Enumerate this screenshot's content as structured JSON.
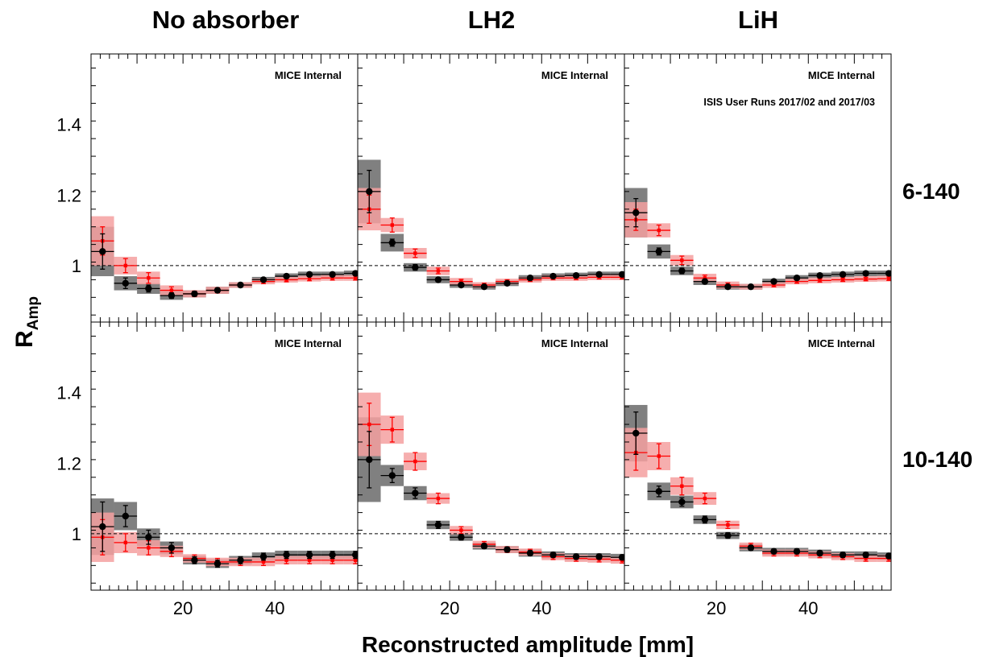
{
  "figure": {
    "column_titles": [
      "No absorber",
      "LH2",
      "LiH"
    ],
    "row_titles": [
      "6-140",
      "10-140"
    ],
    "xlabel": "Reconstructed amplitude [mm]",
    "ylabel_main": "R",
    "ylabel_sub": "Amp",
    "panel_label": "MICE Internal",
    "run_label": "ISIS User Runs 2017/02 and 2017/03"
  },
  "colors": {
    "black_series": "#000000",
    "red_series": "#ff0000",
    "black_band": "#555555",
    "red_band": "#f4a0a0",
    "frame": "#000000"
  },
  "chart_data": {
    "type": "scatter",
    "xlim": [
      0,
      58
    ],
    "ylim": [
      0.84,
      1.6
    ],
    "x_ticks": [
      20,
      40
    ],
    "y_ticks": [
      1,
      1.2,
      1.4
    ],
    "reference_line": 1,
    "grid": false,
    "bin_width": 5,
    "bin_centers": [
      2.5,
      7.5,
      12.5,
      17.5,
      22.5,
      27.5,
      32.5,
      37.5,
      42.5,
      47.5,
      52.5,
      57.5
    ],
    "panels": [
      {
        "column": "No absorber",
        "row": "6-140",
        "series": [
          {
            "values": [
              1.04,
              0.95,
              0.935,
              0.915,
              0.92,
              0.93,
              0.945,
              0.96,
              0.97,
              0.975,
              0.975,
              0.978
            ],
            "errors": [
              0.05,
              0.015,
              0.01,
              0.008,
              0.007,
              0.006,
              0.006,
              0.005,
              0.005,
              0.005,
              0.005,
              0.005
            ],
            "bands": [
              0.07,
              0.02,
              0.015,
              0.012,
              0.01,
              0.01,
              0.008,
              0.008,
              0.008,
              0.008,
              0.008,
              0.008
            ]
          },
          {
            "values": [
              1.07,
              1.0,
              0.965,
              0.93,
              0.92,
              0.93,
              0.945,
              0.955,
              0.96,
              0.963,
              0.965,
              0.965
            ],
            "errors": [
              0.04,
              0.02,
              0.015,
              0.01,
              0.008,
              0.007,
              0.006,
              0.006,
              0.006,
              0.006,
              0.006,
              0.006
            ],
            "bands": [
              0.07,
              0.025,
              0.018,
              0.014,
              0.01,
              0.01,
              0.008,
              0.008,
              0.008,
              0.008,
              0.008,
              0.008
            ]
          }
        ]
      },
      {
        "column": "LH2",
        "row": "6-140",
        "series": [
          {
            "values": [
              1.21,
              1.065,
              0.995,
              0.96,
              0.945,
              0.94,
              0.95,
              0.965,
              0.97,
              0.972,
              0.975,
              0.975
            ],
            "errors": [
              0.06,
              0.01,
              0.008,
              0.006,
              0.005,
              0.005,
              0.005,
              0.005,
              0.005,
              0.005,
              0.005,
              0.005
            ],
            "bands": [
              0.09,
              0.025,
              0.012,
              0.01,
              0.008,
              0.008,
              0.008,
              0.008,
              0.008,
              0.008,
              0.008,
              0.008
            ]
          },
          {
            "values": [
              1.16,
              1.115,
              1.035,
              0.985,
              0.955,
              0.945,
              0.955,
              0.96,
              0.965,
              0.965,
              0.967,
              0.967
            ],
            "errors": [
              0.04,
              0.02,
              0.012,
              0.008,
              0.006,
              0.005,
              0.005,
              0.005,
              0.005,
              0.005,
              0.005,
              0.005
            ],
            "bands": [
              0.06,
              0.02,
              0.015,
              0.012,
              0.01,
              0.008,
              0.008,
              0.008,
              0.008,
              0.008,
              0.008,
              0.008
            ]
          }
        ]
      },
      {
        "column": "LiH",
        "row": "6-140",
        "series": [
          {
            "values": [
              1.15,
              1.04,
              0.985,
              0.955,
              0.94,
              0.94,
              0.955,
              0.965,
              0.972,
              0.975,
              0.978,
              0.978
            ],
            "errors": [
              0.04,
              0.01,
              0.008,
              0.006,
              0.005,
              0.005,
              0.005,
              0.005,
              0.005,
              0.005,
              0.005,
              0.005
            ],
            "bands": [
              0.07,
              0.02,
              0.012,
              0.01,
              0.008,
              0.008,
              0.008,
              0.008,
              0.008,
              0.008,
              0.008,
              0.008
            ]
          },
          {
            "values": [
              1.13,
              1.1,
              1.015,
              0.965,
              0.945,
              0.94,
              0.945,
              0.955,
              0.958,
              0.96,
              0.962,
              0.963
            ],
            "errors": [
              0.03,
              0.015,
              0.012,
              0.008,
              0.006,
              0.005,
              0.005,
              0.005,
              0.005,
              0.005,
              0.005,
              0.005
            ],
            "bands": [
              0.05,
              0.02,
              0.015,
              0.012,
              0.01,
              0.008,
              0.008,
              0.008,
              0.008,
              0.008,
              0.008,
              0.008
            ]
          }
        ]
      },
      {
        "column": "No absorber",
        "row": "10-140",
        "series": [
          {
            "values": [
              1.02,
              1.05,
              0.99,
              0.96,
              0.925,
              0.915,
              0.925,
              0.935,
              0.94,
              0.94,
              0.94,
              0.94
            ],
            "errors": [
              0.07,
              0.03,
              0.02,
              0.015,
              0.01,
              0.01,
              0.01,
              0.01,
              0.01,
              0.01,
              0.01,
              0.01
            ],
            "bands": [
              0.08,
              0.04,
              0.025,
              0.018,
              0.012,
              0.012,
              0.012,
              0.012,
              0.012,
              0.012,
              0.012,
              0.012
            ]
          },
          {
            "values": [
              0.99,
              0.975,
              0.96,
              0.95,
              0.93,
              0.92,
              0.92,
              0.92,
              0.925,
              0.925,
              0.925,
              0.925
            ],
            "errors": [
              0.05,
              0.025,
              0.02,
              0.015,
              0.01,
              0.01,
              0.01,
              0.01,
              0.01,
              0.01,
              0.01,
              0.01
            ],
            "bands": [
              0.07,
              0.03,
              0.022,
              0.016,
              0.012,
              0.012,
              0.012,
              0.012,
              0.012,
              0.012,
              0.012,
              0.012
            ]
          }
        ]
      },
      {
        "column": "LH2",
        "row": "10-140",
        "series": [
          {
            "values": [
              1.21,
              1.165,
              1.115,
              1.025,
              0.99,
              0.965,
              0.955,
              0.945,
              0.94,
              0.935,
              0.935,
              0.933
            ],
            "errors": [
              0.08,
              0.02,
              0.015,
              0.01,
              0.008,
              0.007,
              0.007,
              0.007,
              0.007,
              0.007,
              0.007,
              0.007
            ],
            "bands": [
              0.12,
              0.03,
              0.02,
              0.012,
              0.01,
              0.01,
              0.01,
              0.01,
              0.01,
              0.01,
              0.01,
              0.01
            ]
          },
          {
            "values": [
              1.31,
              1.295,
              1.205,
              1.1,
              1.01,
              0.97,
              0.955,
              0.948,
              0.935,
              0.93,
              0.928,
              0.925
            ],
            "errors": [
              0.06,
              0.035,
              0.025,
              0.015,
              0.01,
              0.008,
              0.008,
              0.008,
              0.008,
              0.008,
              0.008,
              0.008
            ],
            "bands": [
              0.09,
              0.04,
              0.025,
              0.015,
              0.012,
              0.01,
              0.01,
              0.01,
              0.01,
              0.01,
              0.01,
              0.01
            ]
          }
        ]
      },
      {
        "column": "LiH",
        "row": "10-140",
        "series": [
          {
            "values": [
              1.285,
              1.12,
              1.09,
              1.04,
              0.995,
              0.96,
              0.95,
              0.95,
              0.945,
              0.94,
              0.94,
              0.937
            ],
            "errors": [
              0.06,
              0.015,
              0.012,
              0.01,
              0.008,
              0.007,
              0.007,
              0.007,
              0.007,
              0.007,
              0.007,
              0.007
            ],
            "bands": [
              0.08,
              0.025,
              0.018,
              0.012,
              0.01,
              0.01,
              0.01,
              0.01,
              0.01,
              0.01,
              0.01,
              0.01
            ]
          },
          {
            "values": [
              1.23,
              1.22,
              1.135,
              1.1,
              1.025,
              0.965,
              0.945,
              0.945,
              0.94,
              0.935,
              0.93,
              0.93
            ],
            "errors": [
              0.05,
              0.035,
              0.025,
              0.015,
              0.01,
              0.008,
              0.008,
              0.008,
              0.008,
              0.008,
              0.008,
              0.008
            ],
            "bands": [
              0.07,
              0.04,
              0.025,
              0.018,
              0.012,
              0.01,
              0.01,
              0.01,
              0.01,
              0.01,
              0.01,
              0.01
            ]
          }
        ]
      }
    ]
  }
}
